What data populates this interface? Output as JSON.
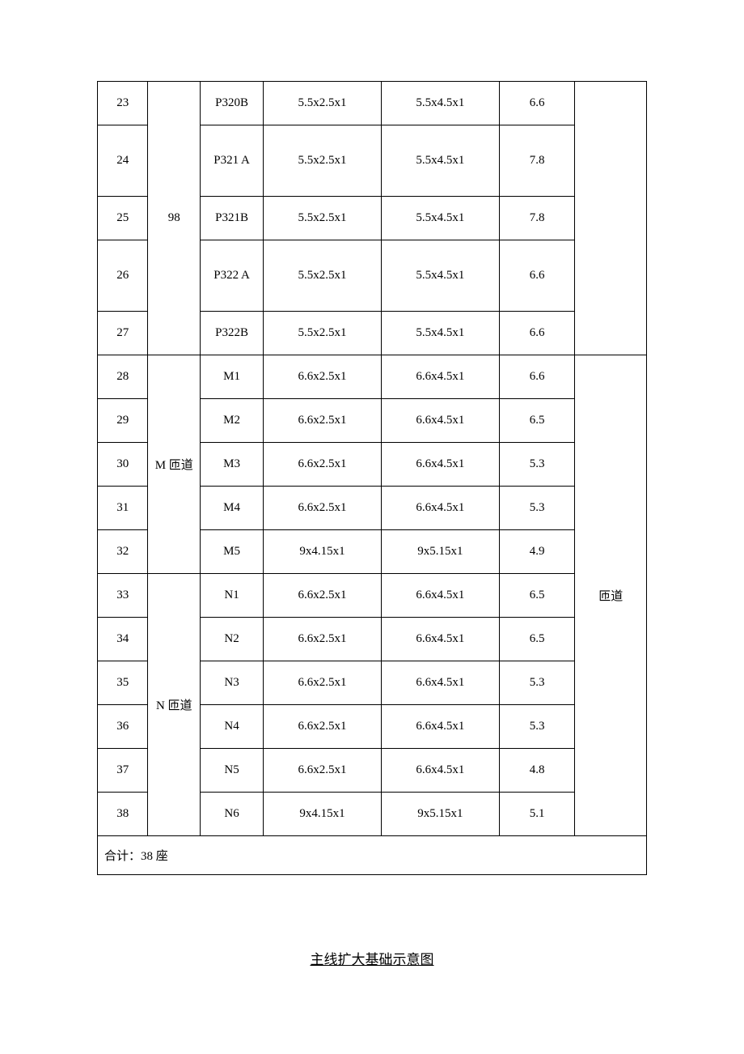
{
  "table": {
    "rows": [
      {
        "no": "23",
        "group": "",
        "code": "P320B",
        "dim1": "5.5x2.5x1",
        "dim2": "5.5x4.5x1",
        "val": "6.6"
      },
      {
        "no": "24",
        "group": "",
        "code": "P321 A",
        "dim1": "5.5x2.5x1",
        "dim2": "5.5x4.5x1",
        "val": "7.8"
      },
      {
        "no": "25",
        "group": "98",
        "code": "P321B",
        "dim1": "5.5x2.5x1",
        "dim2": "5.5x4.5x1",
        "val": "7.8"
      },
      {
        "no": "26",
        "group": "",
        "code": "P322 A",
        "dim1": "5.5x2.5x1",
        "dim2": "5.5x4.5x1",
        "val": "6.6"
      },
      {
        "no": "27",
        "group": "",
        "code": "P322B",
        "dim1": "5.5x2.5x1",
        "dim2": "5.5x4.5x1",
        "val": "6.6"
      },
      {
        "no": "28",
        "group": "",
        "code": "M1",
        "dim1": "6.6x2.5x1",
        "dim2": "6.6x4.5x1",
        "val": "6.6"
      },
      {
        "no": "29",
        "group": "",
        "code": "M2",
        "dim1": "6.6x2.5x1",
        "dim2": "6.6x4.5x1",
        "val": "6.5"
      },
      {
        "no": "30",
        "group": "M 匝道",
        "code": "M3",
        "dim1": "6.6x2.5x1",
        "dim2": "6.6x4.5x1",
        "val": "5.3"
      },
      {
        "no": "31",
        "group": "",
        "code": "M4",
        "dim1": "6.6x2.5x1",
        "dim2": "6.6x4.5x1",
        "val": "5.3"
      },
      {
        "no": "32",
        "group": "",
        "code": "M5",
        "dim1": "9x4.15x1",
        "dim2": "9x5.15x1",
        "val": "4.9"
      },
      {
        "no": "33",
        "group": "",
        "code": "N1",
        "dim1": "6.6x2.5x1",
        "dim2": "6.6x4.5x1",
        "val": "6.5"
      },
      {
        "no": "34",
        "group": "",
        "code": "N2",
        "dim1": "6.6x2.5x1",
        "dim2": "6.6x4.5x1",
        "val": "6.5"
      },
      {
        "no": "35",
        "group": "N 匝道",
        "code": "N3",
        "dim1": "6.6x2.5x1",
        "dim2": "6.6x4.5x1",
        "val": "5.3"
      },
      {
        "no": "36",
        "group": "",
        "code": "N4",
        "dim1": "6.6x2.5x1",
        "dim2": "6.6x4.5x1",
        "val": "5.3"
      },
      {
        "no": "37",
        "group": "",
        "code": "N5",
        "dim1": "6.6x2.5x1",
        "dim2": "6.6x4.5x1",
        "val": "4.8"
      },
      {
        "no": "38",
        "group": "",
        "code": "N6",
        "dim1": "9x4.15x1",
        "dim2": "9x5.15x1",
        "val": "5.1"
      }
    ],
    "group_98": "98",
    "group_m": "M 匝道",
    "group_n": "N 匝道",
    "note_right": "匝道",
    "footer": "合计：38 座"
  },
  "caption": "主线扩大基础示意图"
}
